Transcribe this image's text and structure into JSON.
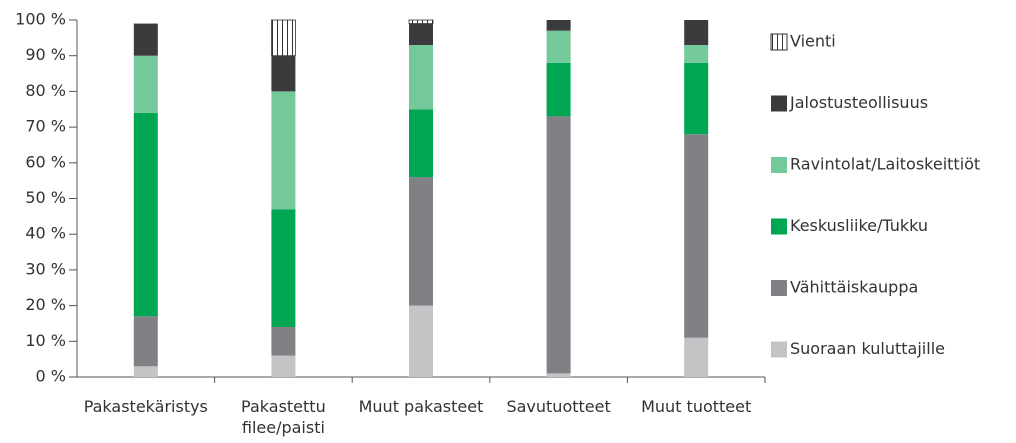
{
  "chart_data": {
    "type": "stacked_bar",
    "categories": [
      "Pakastekäristys",
      "Pakastettu filee/paisti",
      "Muut pakasteet",
      "Savutuotteet",
      "Muut tuotteet"
    ],
    "series": [
      {
        "name": "Suoraan kuluttajille",
        "color": "#c3c4c6",
        "values": [
          3,
          6,
          20,
          1,
          11
        ]
      },
      {
        "name": "Vähittäiskauppa",
        "color": "#808185",
        "values": [
          14,
          8,
          36,
          72,
          57
        ]
      },
      {
        "name": "Keskusliike/Tukku",
        "color": "#00a651",
        "values": [
          57,
          33,
          19,
          15,
          20
        ]
      },
      {
        "name": "Ravintolat/Laitoskeittiöt",
        "color": "#74c99b",
        "values": [
          16,
          33,
          18,
          9,
          5
        ]
      },
      {
        "name": "Jalostusteollisuus",
        "color": "#3b3b3d",
        "values": [
          9,
          10,
          6,
          3,
          7
        ]
      },
      {
        "name": "Vienti",
        "color": "#ffffff",
        "hatch": "vertical",
        "values": [
          0,
          10,
          1,
          0,
          0
        ]
      }
    ],
    "ylim": [
      0,
      100
    ],
    "yticks": [
      {
        "value": 0,
        "label": "0 %"
      },
      {
        "value": 10,
        "label": "10 %"
      },
      {
        "value": 20,
        "label": "20 %"
      },
      {
        "value": 30,
        "label": "30 %"
      },
      {
        "value": 40,
        "label": "40 %"
      },
      {
        "value": 50,
        "label": "50 %"
      },
      {
        "value": 60,
        "label": "60 %"
      },
      {
        "value": 70,
        "label": "70 %"
      },
      {
        "value": 80,
        "label": "80 %"
      },
      {
        "value": 90,
        "label": "90 %"
      },
      {
        "value": 100,
        "label": "100 %"
      }
    ],
    "legend": "right",
    "grid": false
  }
}
